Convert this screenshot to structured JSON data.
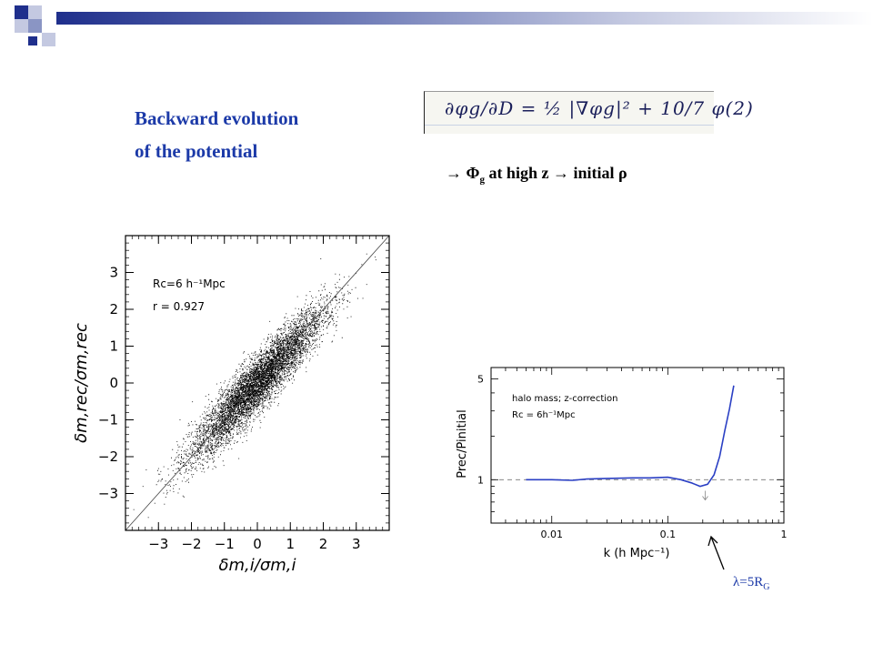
{
  "slide": {
    "title_line1": "Backward evolution",
    "title_line2": "of the potential",
    "equation": "∂φg/∂D = ½ |∇φg|² + 10/7 φ(2)",
    "arrow_text_prefix": "→ Φ",
    "arrow_text_sub": "g",
    "arrow_text_rest": " at high z → initial ρ",
    "annotation_prefix": "λ=5R",
    "annotation_sub": "G"
  },
  "colors": {
    "title": "#1c3aa8",
    "curve": "#2a3fc4",
    "header_dark": "#1f2f8c",
    "header_light": "#c4c9e1"
  },
  "chart_data": [
    {
      "type": "scatter",
      "xlabel": "δm,i/σm,i",
      "ylabel": "δm,rec/σm,rec",
      "xlim": [
        -4,
        4
      ],
      "ylim": [
        -4,
        4
      ],
      "xticks": [
        -3,
        -2,
        -1,
        0,
        1,
        2,
        3
      ],
      "yticks": [
        -3,
        -2,
        -1,
        0,
        1,
        2,
        3
      ],
      "tick_labels": [
        "−3",
        "−2",
        "−1",
        "0",
        "1",
        "2",
        "3"
      ],
      "annotations": [
        "Rc=6 h⁻¹Mpc",
        "r = 0.927"
      ],
      "correlation": 0.927,
      "diagonal_line": true
    },
    {
      "type": "line",
      "xlabel": "k (h Mpc⁻¹)",
      "ylabel": "Prec/Pinitial",
      "xscale": "log",
      "yscale": "log",
      "xlim": [
        0.003,
        1
      ],
      "ylim": [
        0.5,
        6
      ],
      "xticks": [
        0.01,
        0.1,
        1
      ],
      "xtick_labels": [
        "0.01",
        "0.1",
        "1"
      ],
      "yticks": [
        1,
        5
      ],
      "ytick_labels": [
        "1",
        "5"
      ],
      "annotations": [
        "halo mass; z-correction",
        "Rc = 6h⁻¹Mpc"
      ],
      "reference_line_y": 1,
      "marker_arrow_k": 0.21,
      "series": [
        {
          "x": [
            0.006,
            0.01,
            0.015,
            0.02,
            0.03,
            0.05,
            0.07,
            0.1,
            0.13,
            0.16,
            0.19,
            0.22,
            0.25,
            0.28,
            0.31,
            0.34,
            0.37
          ],
          "values": [
            1.0,
            1.0,
            0.99,
            1.01,
            1.02,
            1.03,
            1.03,
            1.04,
            1.0,
            0.95,
            0.9,
            0.93,
            1.08,
            1.45,
            2.2,
            3.1,
            4.5
          ]
        }
      ]
    }
  ]
}
